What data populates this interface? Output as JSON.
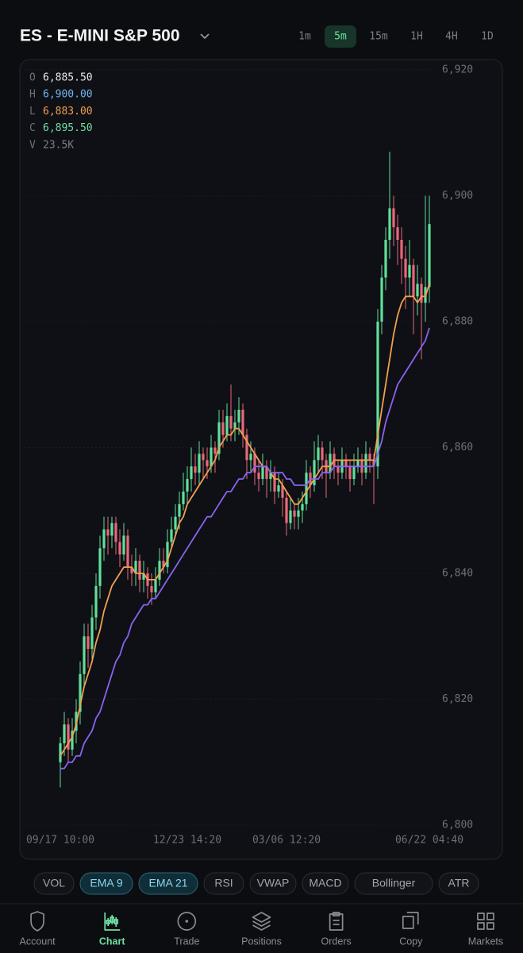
{
  "header": {
    "title": "ES - E-MINI S&P 500",
    "timeframes": [
      {
        "label": "1m",
        "active": false
      },
      {
        "label": "5m",
        "active": true
      },
      {
        "label": "15m",
        "active": false
      },
      {
        "label": "1H",
        "active": false
      },
      {
        "label": "4H",
        "active": false
      },
      {
        "label": "1D",
        "active": false
      }
    ]
  },
  "ohlc_panel": [
    {
      "key": "O",
      "value": "6,885.50",
      "color": "#e8e8e8"
    },
    {
      "key": "H",
      "value": "6,900.00",
      "color": "#6fb6f2"
    },
    {
      "key": "L",
      "value": "6,883.00",
      "color": "#f0a050"
    },
    {
      "key": "C",
      "value": "6,895.50",
      "color": "#6ee0a0"
    },
    {
      "key": "V",
      "value": "23.5K",
      "color": "#7d7f86"
    }
  ],
  "chart_data": {
    "type": "candlestick",
    "up_color": "#5fe09a",
    "down_color": "#e8687a",
    "grid": true,
    "categories": [
      "09/17 10:00",
      null,
      null,
      null,
      null,
      null,
      null,
      null,
      null,
      null,
      null,
      null,
      null,
      null,
      null,
      null,
      null,
      null,
      null,
      null,
      null,
      null,
      null,
      null,
      null,
      null,
      null,
      null,
      null,
      null,
      null,
      null,
      "12/23 14:20",
      null,
      null,
      null,
      null,
      null,
      null,
      null,
      null,
      null,
      null,
      null,
      null,
      null,
      null,
      null,
      null,
      null,
      null,
      null,
      null,
      null,
      null,
      null,
      null,
      "03/06 12:20",
      null,
      null,
      null,
      null,
      null,
      null,
      null,
      null,
      null,
      null,
      null,
      null,
      null,
      null,
      null,
      null,
      null,
      null,
      null,
      null,
      null,
      null,
      null,
      null,
      null,
      null,
      null,
      null,
      null,
      null,
      null,
      null,
      null,
      null,
      null,
      "06/22 04:40"
    ],
    "open": [
      6810,
      6813,
      6816,
      6812,
      6815,
      6818,
      6824,
      6830,
      6828,
      6833,
      6838,
      6844,
      6847,
      6846,
      6848,
      6845,
      6843,
      6846,
      6841,
      6840,
      6842,
      6839,
      6840,
      6838,
      6837,
      6839,
      6842,
      6841,
      6845,
      6847,
      6849,
      6851,
      6853,
      6855,
      6857,
      6856,
      6859,
      6858,
      6857,
      6860,
      6859,
      6864,
      6862,
      6865,
      6863,
      6864,
      6866,
      6862,
      6858,
      6859,
      6856,
      6855,
      6857,
      6855,
      6856,
      6853,
      6854,
      6852,
      6848,
      6850,
      6849,
      6850,
      6851,
      6856,
      6854,
      6858,
      6860,
      6858,
      6856,
      6859,
      6857,
      6856,
      6858,
      6857,
      6855,
      6857,
      6858,
      6856,
      6859,
      6858,
      6857,
      6880,
      6887,
      6893,
      6898,
      6895,
      6893,
      6890,
      6887,
      6889,
      6884,
      6886,
      6883,
      6885.5
    ],
    "high": [
      6814,
      6818,
      6817,
      6817,
      6820,
      6826,
      6832,
      6832,
      6835,
      6840,
      6846,
      6849,
      6849,
      6849,
      6849,
      6847,
      6848,
      6847,
      6843,
      6844,
      6843,
      6842,
      6841,
      6840,
      6841,
      6844,
      6844,
      6847,
      6849,
      6851,
      6853,
      6856,
      6857,
      6860,
      6859,
      6861,
      6860,
      6860,
      6862,
      6861,
      6866,
      6866,
      6867,
      6870,
      6866,
      6868,
      6867,
      6863,
      6861,
      6860,
      6858,
      6859,
      6858,
      6858,
      6857,
      6856,
      6855,
      6853,
      6852,
      6851,
      6852,
      6853,
      6858,
      6857,
      6861,
      6862,
      6861,
      6859,
      6861,
      6860,
      6858,
      6860,
      6859,
      6858,
      6859,
      6860,
      6859,
      6861,
      6860,
      6859,
      6882,
      6889,
      6895,
      6907,
      6900,
      6897,
      6895,
      6892,
      6893,
      6890,
      6889,
      6887,
      6900,
      6900
    ],
    "low": [
      6806,
      6811,
      6810,
      6811,
      6813,
      6816,
      6822,
      6825,
      6826,
      6831,
      6836,
      6842,
      6843,
      6844,
      6843,
      6841,
      6842,
      6839,
      6838,
      6838,
      6837,
      6837,
      6836,
      6835,
      6836,
      6838,
      6840,
      6840,
      6844,
      6846,
      6847,
      6850,
      6851,
      6853,
      6854,
      6854,
      6855,
      6855,
      6856,
      6856,
      6858,
      6860,
      6861,
      6861,
      6861,
      6862,
      6860,
      6855,
      6856,
      6854,
      6853,
      6854,
      6852,
      6853,
      6851,
      6852,
      6849,
      6846,
      6847,
      6847,
      6847,
      6848,
      6850,
      6852,
      6853,
      6856,
      6855,
      6852,
      6855,
      6855,
      6854,
      6855,
      6855,
      6853,
      6854,
      6856,
      6854,
      6855,
      6856,
      6851,
      6855,
      6878,
      6885,
      6890,
      6892,
      6889,
      6886,
      6882,
      6884,
      6878,
      6881,
      6874,
      6880,
      6883
    ],
    "close": [
      6813,
      6816,
      6812,
      6815,
      6818,
      6824,
      6830,
      6828,
      6833,
      6838,
      6844,
      6847,
      6846,
      6848,
      6845,
      6843,
      6846,
      6841,
      6840,
      6842,
      6839,
      6840,
      6838,
      6837,
      6839,
      6842,
      6841,
      6845,
      6847,
      6849,
      6851,
      6853,
      6855,
      6857,
      6856,
      6859,
      6858,
      6857,
      6860,
      6859,
      6864,
      6862,
      6865,
      6863,
      6864,
      6866,
      6862,
      6858,
      6859,
      6856,
      6855,
      6857,
      6855,
      6856,
      6853,
      6854,
      6852,
      6848,
      6850,
      6849,
      6850,
      6851,
      6856,
      6854,
      6858,
      6860,
      6858,
      6856,
      6859,
      6857,
      6856,
      6858,
      6857,
      6855,
      6857,
      6858,
      6856,
      6859,
      6858,
      6857,
      6880,
      6887,
      6893,
      6898,
      6895,
      6893,
      6890,
      6887,
      6889,
      6884,
      6886,
      6883,
      6885.5,
      6895.5
    ],
    "series": [
      {
        "name": "EMA 9",
        "color": "#f0a050",
        "values": [
          6811,
          6812,
          6813,
          6814,
          6816,
          6819,
          6822,
          6824,
          6826,
          6829,
          6831,
          6834,
          6836,
          6838,
          6839,
          6840,
          6841,
          6841,
          6841,
          6840,
          6840,
          6840,
          6839,
          6839,
          6839,
          6840,
          6841,
          6842,
          6844,
          6846,
          6848,
          6849,
          6851,
          6852,
          6853,
          6854,
          6855,
          6856,
          6857,
          6858,
          6860,
          6861,
          6862,
          6862,
          6863,
          6863,
          6862,
          6861,
          6860,
          6859,
          6858,
          6857,
          6857,
          6856,
          6855,
          6855,
          6854,
          6853,
          6852,
          6851,
          6851,
          6852,
          6853,
          6854,
          6855,
          6856,
          6857,
          6857,
          6857,
          6858,
          6858,
          6858,
          6858,
          6858,
          6858,
          6858,
          6858,
          6858,
          6858,
          6858,
          6862,
          6866,
          6870,
          6874,
          6878,
          6881,
          6883,
          6884,
          6884,
          6884,
          6883,
          6884,
          6884,
          6886
        ]
      },
      {
        "name": "EMA 21",
        "color": "#8a63f0",
        "values": [
          6809,
          6809,
          6810,
          6810,
          6811,
          6811,
          6813,
          6814,
          6815,
          6817,
          6818,
          6820,
          6822,
          6824,
          6826,
          6827,
          6829,
          6830,
          6832,
          6833,
          6834,
          6835,
          6835,
          6836,
          6836,
          6837,
          6838,
          6839,
          6840,
          6841,
          6842,
          6843,
          6844,
          6845,
          6846,
          6847,
          6848,
          6849,
          6849,
          6850,
          6851,
          6852,
          6853,
          6853,
          6854,
          6855,
          6855,
          6856,
          6856,
          6857,
          6857,
          6857,
          6857,
          6856,
          6856,
          6856,
          6856,
          6855,
          6855,
          6854,
          6854,
          6854,
          6854,
          6855,
          6855,
          6855,
          6856,
          6856,
          6856,
          6857,
          6857,
          6857,
          6857,
          6857,
          6857,
          6857,
          6857,
          6857,
          6857,
          6857,
          6859,
          6861,
          6864,
          6866,
          6868,
          6870,
          6871,
          6872,
          6873,
          6874,
          6875,
          6876,
          6877,
          6879
        ]
      }
    ],
    "ylim": [
      6800,
      6920
    ],
    "yticks": [
      {
        "value": 6800,
        "label": "6,800"
      },
      {
        "value": 6820,
        "label": "6,820"
      },
      {
        "value": 6840,
        "label": "6,840"
      },
      {
        "value": 6860,
        "label": "6,860"
      },
      {
        "value": 6880,
        "label": "6,880"
      },
      {
        "value": 6900,
        "label": "6,900"
      },
      {
        "value": 6920,
        "label": "6,920"
      }
    ]
  },
  "indicators": [
    {
      "label": "VOL",
      "active": false
    },
    {
      "label": "RSI",
      "active": false
    },
    {
      "label": "VWAP",
      "active": false
    },
    {
      "label": "MACD",
      "active": false
    },
    {
      "label": "Bollinger",
      "active": false
    },
    {
      "label": "ATR",
      "active": false
    }
  ],
  "nav": [
    {
      "label": "Account",
      "active": false
    },
    {
      "label": "Chart",
      "active": true
    },
    {
      "label": "Trade",
      "active": false
    },
    {
      "label": "Positions",
      "active": false
    },
    {
      "label": "Orders",
      "active": false
    },
    {
      "label": "Copy",
      "active": false
    },
    {
      "label": "Markets",
      "active": false
    }
  ]
}
